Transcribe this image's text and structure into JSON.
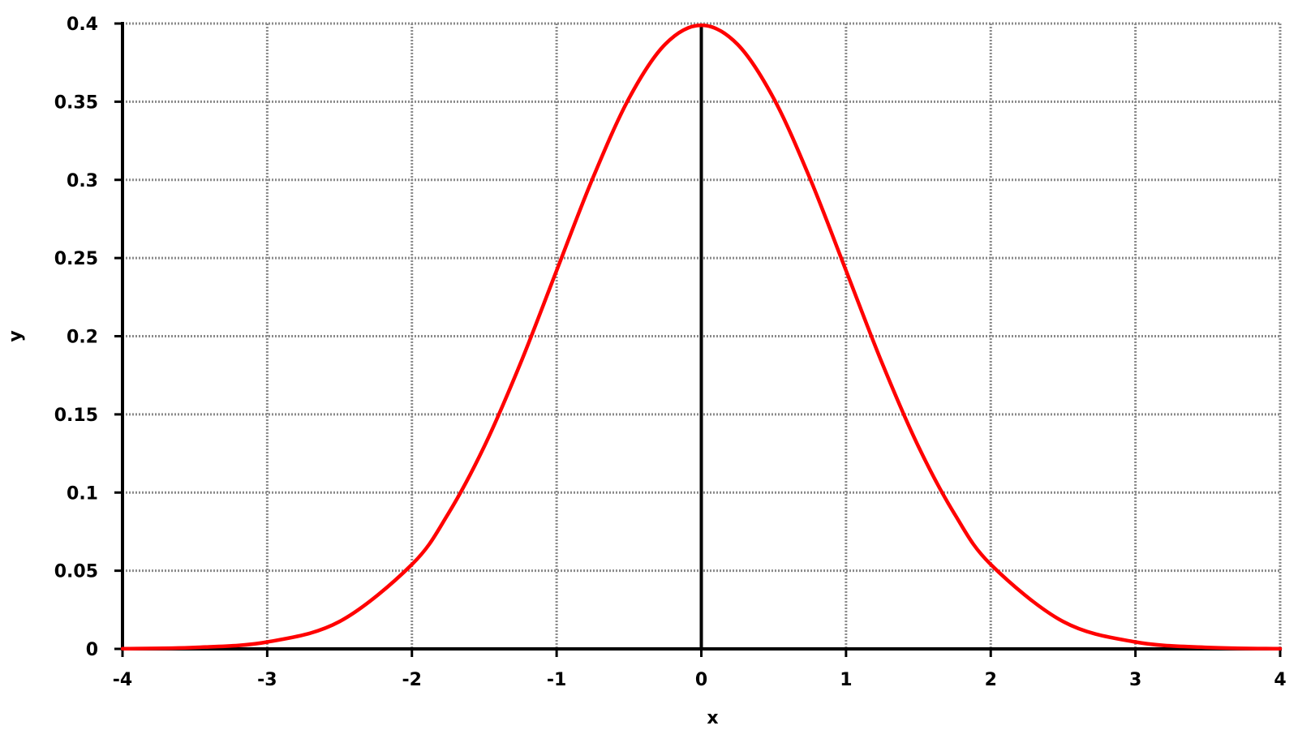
{
  "chart_data": {
    "type": "line",
    "title": "",
    "xlabel": "x",
    "ylabel": "y",
    "xlim": [
      -4,
      4
    ],
    "ylim": [
      0,
      0.4
    ],
    "x_ticks": [
      -4,
      -3,
      -2,
      -1,
      0,
      1,
      2,
      3,
      4
    ],
    "x_tick_labels": [
      "-4",
      "-3",
      "-2",
      "-1",
      "0",
      "1",
      "2",
      "3",
      "4"
    ],
    "y_ticks": [
      0,
      0.05,
      0.1,
      0.15,
      0.2,
      0.25,
      0.3,
      0.35,
      0.4
    ],
    "y_tick_labels": [
      "0",
      "0.05",
      "0.1",
      "0.15",
      "0.2",
      "0.25",
      "0.3",
      "0.35",
      "0.4"
    ],
    "grid": true,
    "legend": false,
    "series": [
      {
        "color": "#ff0000",
        "x": [
          -4,
          -3.5,
          -3,
          -2.5,
          -2,
          -1.75,
          -1.5,
          -1.25,
          -1,
          -0.75,
          -0.5,
          -0.25,
          0,
          0.25,
          0.5,
          0.75,
          1,
          1.25,
          1.5,
          1.75,
          2,
          2.5,
          3,
          3.5,
          4
        ],
        "y": [
          0.0001,
          0.0009,
          0.0044,
          0.0175,
          0.054,
          0.0863,
          0.1295,
          0.1826,
          0.242,
          0.3011,
          0.3521,
          0.3867,
          0.3989,
          0.3867,
          0.3521,
          0.3011,
          0.242,
          0.1826,
          0.1295,
          0.0863,
          0.054,
          0.0175,
          0.0044,
          0.0009,
          0.0001
        ]
      }
    ]
  }
}
